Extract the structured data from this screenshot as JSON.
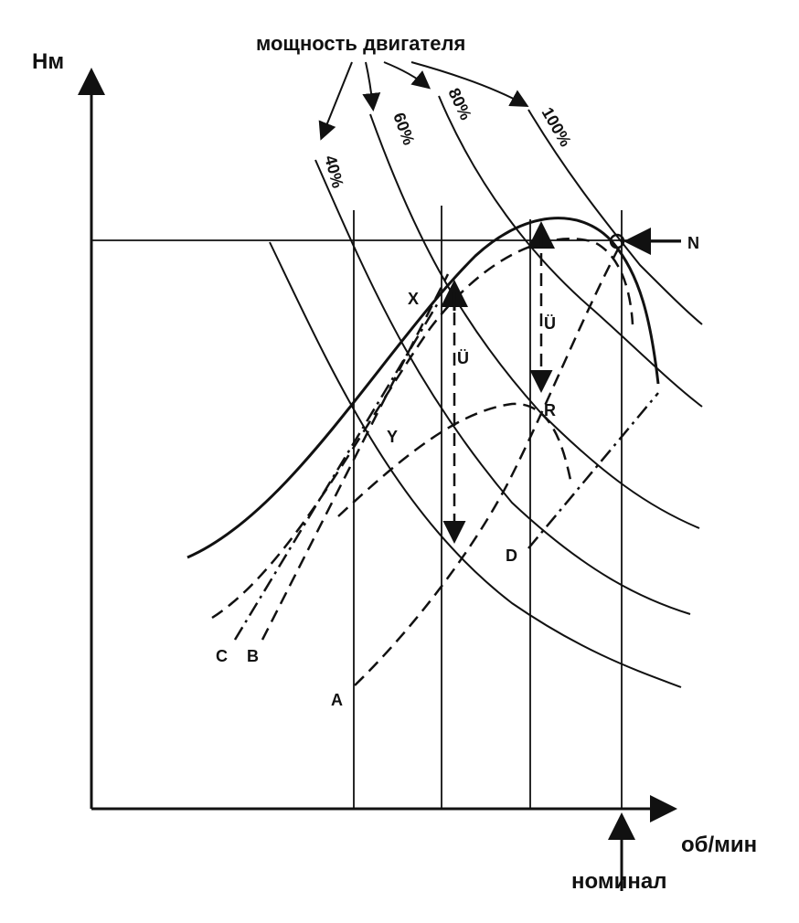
{
  "axes": {
    "y_label": "Нм",
    "x_label": "об/мин",
    "x_marker": "номинал"
  },
  "power": {
    "title": "мощность двигателя",
    "levels": [
      "40%",
      "60%",
      "80%",
      "100%"
    ]
  },
  "points": {
    "N": "N",
    "X": "X",
    "Y": "Y",
    "R": "R",
    "A": "A",
    "B": "B",
    "C": "C",
    "D": "D"
  },
  "reserve": [
    "Ü",
    "Ü"
  ]
}
